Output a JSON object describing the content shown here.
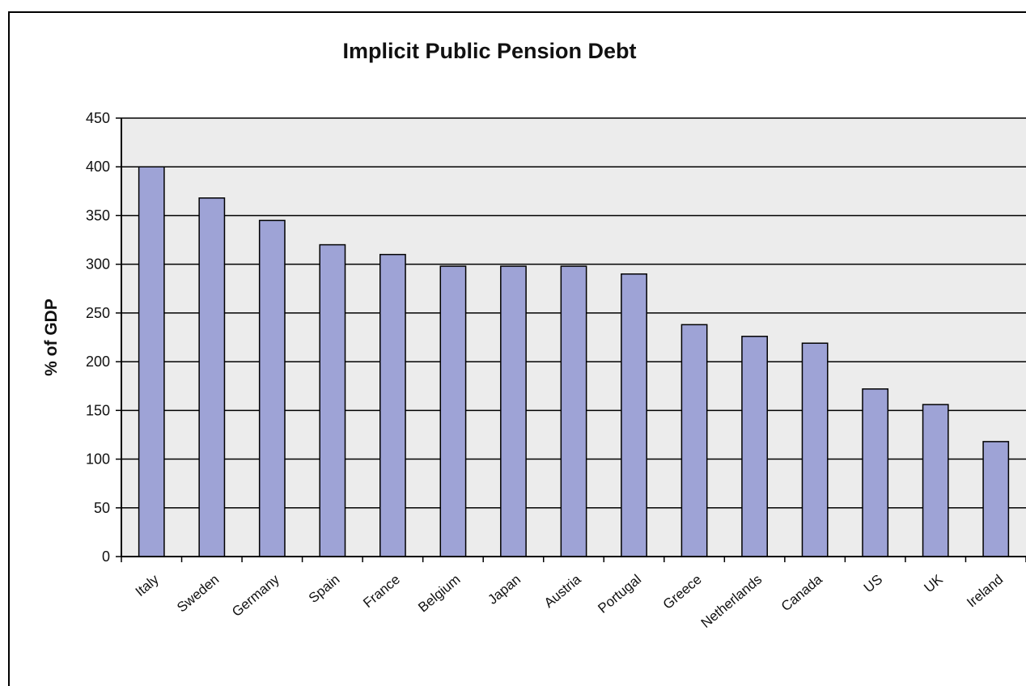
{
  "chart_data": {
    "type": "bar",
    "title": "Implicit Public Pension Debt",
    "xlabel": "",
    "ylabel": "% of GDP",
    "ylim": [
      0,
      450
    ],
    "yticks": [
      0,
      50,
      100,
      150,
      200,
      250,
      300,
      350,
      400,
      450
    ],
    "grid": true,
    "legend": "none",
    "categories": [
      "Italy",
      "Sweden",
      "Germany",
      "Spain",
      "France",
      "Belgium",
      "Japan",
      "Austria",
      "Portugal",
      "Greece",
      "Netherlands",
      "Canada",
      "US",
      "UK",
      "Ireland"
    ],
    "values": [
      400,
      368,
      345,
      320,
      310,
      298,
      298,
      298,
      290,
      238,
      226,
      219,
      172,
      156,
      118
    ],
    "colors": {
      "bar_fill": "#9ea3d6",
      "bar_stroke": "#000000",
      "plot_background": "#ececec",
      "gridline": "#000000"
    }
  }
}
